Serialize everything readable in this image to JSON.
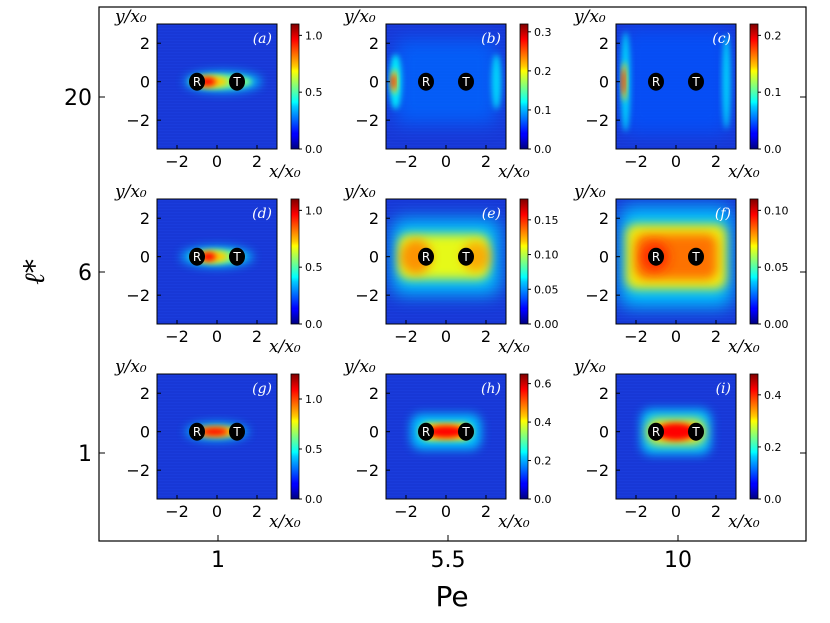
{
  "chart_data": {
    "type": "heatmap",
    "xlabel": "Pe",
    "ylabel": "ℓ*",
    "outer_x_categories": [
      "1",
      "5.5",
      "10"
    ],
    "outer_y_categories": [
      "20",
      "6",
      "1"
    ],
    "grid": false,
    "colormap": "jet",
    "panel_axes": {
      "xlabel": "x/x₀",
      "ylabel": "y/x₀",
      "xlim": [
        -3,
        3
      ],
      "ylim": [
        -3.5,
        3
      ],
      "xticks": [
        "−2",
        "0",
        "2"
      ],
      "yticks": [
        "2",
        "0",
        "−2"
      ]
    },
    "markers": [
      {
        "label": "R",
        "x": -1,
        "y": 0
      },
      {
        "label": "T",
        "x": 1,
        "y": 0
      }
    ],
    "panels": [
      {
        "tag": "(a)",
        "pe": "1",
        "ell": "20",
        "vmax": 1.1,
        "ticks": [
          "1.0",
          "0.5",
          "0.0"
        ]
      },
      {
        "tag": "(b)",
        "pe": "5.5",
        "ell": "20",
        "vmax": 0.32,
        "ticks": [
          "0.3",
          "0.2",
          "0.1",
          "0.0"
        ]
      },
      {
        "tag": "(c)",
        "pe": "10",
        "ell": "20",
        "vmax": 0.22,
        "ticks": [
          "0.2",
          "0.1",
          "0.0"
        ]
      },
      {
        "tag": "(d)",
        "pe": "1",
        "ell": "6",
        "vmax": 1.1,
        "ticks": [
          "1.0",
          "0.5",
          "0.0"
        ]
      },
      {
        "tag": "(e)",
        "pe": "5.5",
        "ell": "6",
        "vmax": 0.18,
        "ticks": [
          "0.15",
          "0.10",
          "0.05",
          "0.00"
        ]
      },
      {
        "tag": "(f)",
        "pe": "10",
        "ell": "6",
        "vmax": 0.11,
        "ticks": [
          "0.10",
          "0.05",
          "0.00"
        ]
      },
      {
        "tag": "(g)",
        "pe": "1",
        "ell": "1",
        "vmax": 1.25,
        "ticks": [
          "1.0",
          "0.5",
          "0.0"
        ]
      },
      {
        "tag": "(h)",
        "pe": "5.5",
        "ell": "1",
        "vmax": 0.65,
        "ticks": [
          "0.6",
          "0.4",
          "0.2",
          "0.0"
        ]
      },
      {
        "tag": "(i)",
        "pe": "10",
        "ell": "1",
        "vmax": 0.48,
        "ticks": [
          "0.4",
          "0.2",
          "0.0"
        ]
      }
    ]
  }
}
